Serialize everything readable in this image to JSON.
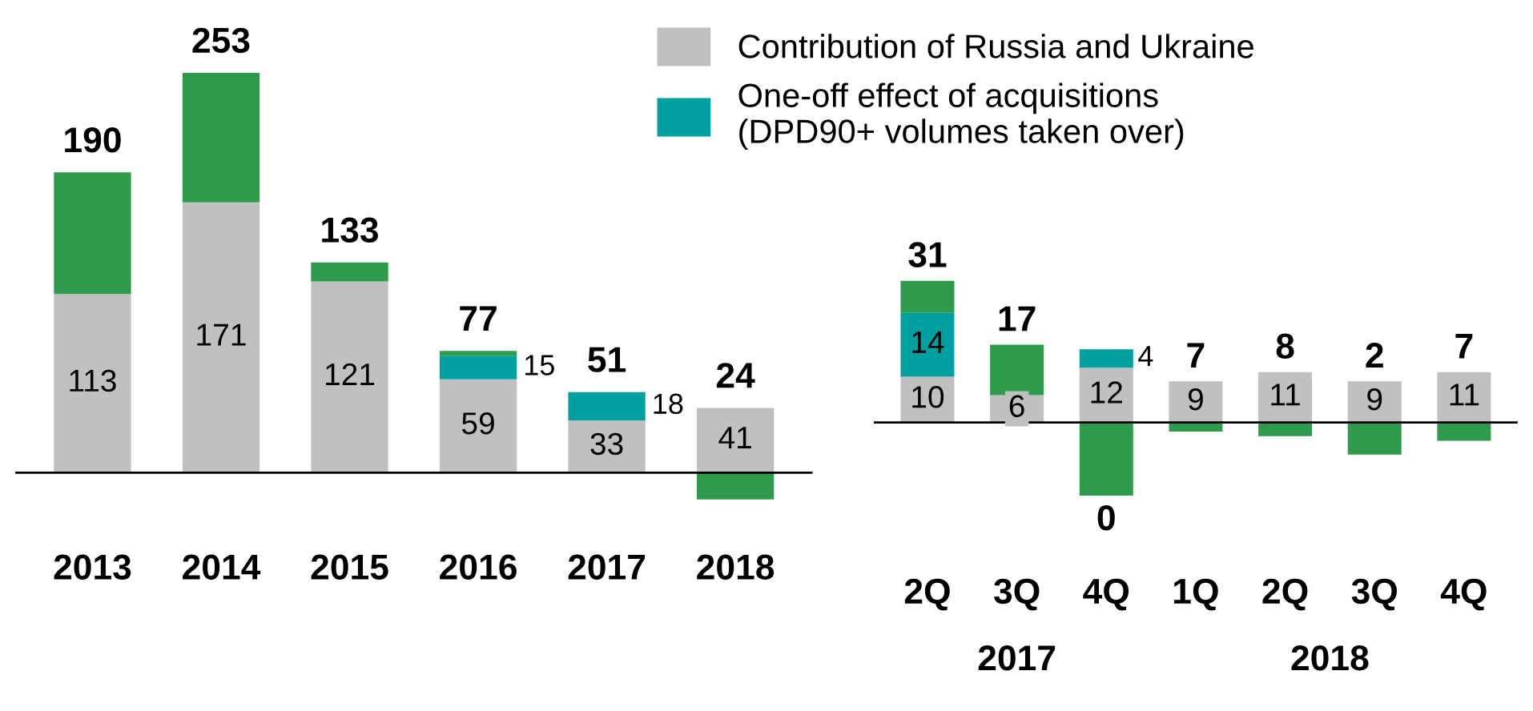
{
  "chart_data": [
    {
      "type": "bar",
      "stacked": true,
      "categories": [
        "2013",
        "2014",
        "2015",
        "2016",
        "2017",
        "2018"
      ],
      "series": [
        {
          "name": "Contribution of Russia and Ukraine",
          "color": "#c0c0c0",
          "values": [
            113,
            171,
            121,
            59,
            33,
            41
          ],
          "value_labels": [
            "113",
            "171",
            "121",
            "59",
            "33",
            "41"
          ]
        },
        {
          "name": "One-off effect of acquisitions\n(DPD90+ volumes taken over)",
          "color": "#00a0a0",
          "values": [
            null,
            null,
            null,
            15,
            18,
            null
          ],
          "value_labels": [
            null,
            null,
            null,
            "15",
            "18",
            null
          ]
        },
        {
          "color": "#2e9a4c",
          "values": [
            77,
            82,
            12,
            3,
            null,
            -17
          ]
        }
      ],
      "totals": [
        "190",
        "253",
        "133",
        "77",
        "51",
        "24"
      ],
      "legend": "top right"
    },
    {
      "type": "bar",
      "stacked": true,
      "categories": [
        "2Q",
        "3Q",
        "4Q",
        "1Q",
        "2Q",
        "3Q",
        "4Q"
      ],
      "series": [
        {
          "color": "#c0c0c0",
          "values": [
            10,
            6,
            12,
            9,
            11,
            9,
            11
          ],
          "value_labels": [
            "10",
            "6",
            "12",
            "9",
            "11",
            "9",
            "11"
          ]
        },
        {
          "color": "#00a0a0",
          "values": [
            14,
            null,
            4,
            null,
            null,
            null,
            null
          ],
          "value_labels": [
            "14",
            null,
            "4",
            null,
            null,
            null,
            null
          ]
        },
        {
          "color": "#2e9a4c",
          "values": [
            7,
            11,
            -16,
            -2,
            -3,
            -7,
            -4
          ]
        }
      ],
      "totals": [
        "31",
        "17",
        "0",
        "7",
        "8",
        "2",
        "7"
      ],
      "annotations": [
        "2017",
        "2018"
      ]
    }
  ]
}
